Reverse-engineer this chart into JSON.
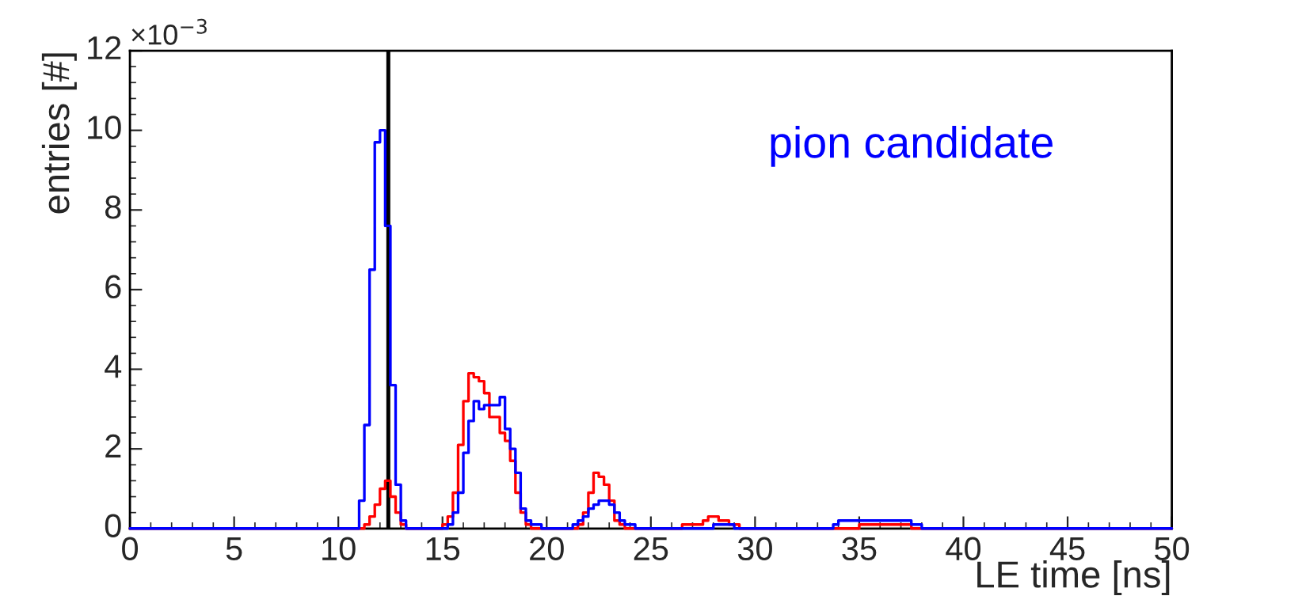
{
  "chart_data": {
    "type": "step",
    "annotations": [
      "pion candidate",
      "×10$^{−3}$"
    ],
    "xlabel": "LE time [ns]",
    "ylabel": "entries [#]",
    "xlim": [
      0,
      50
    ],
    "xticks": [
      0,
      5,
      10,
      15,
      20,
      25,
      30,
      35,
      40,
      45,
      50
    ],
    "ylim": [
      0,
      12
    ],
    "yticks": [
      0,
      2,
      4,
      6,
      8,
      10,
      12
    ],
    "grid": false,
    "legend": false,
    "ref_lines": [
      {
        "axis": "x",
        "value": 12.4,
        "label": null,
        "color": "#000000"
      }
    ],
    "series": [
      {
        "color": "#ff0000",
        "x": [
          0,
          11.0,
          11.25,
          11.5,
          11.75,
          12.0,
          12.25,
          12.5,
          12.75,
          13.0,
          13.25,
          14.75,
          15.0,
          15.25,
          15.5,
          15.75,
          16.0,
          16.25,
          16.5,
          16.75,
          17.0,
          17.25,
          17.5,
          17.75,
          18.0,
          18.25,
          18.5,
          18.75,
          19.0,
          19.25,
          19.5,
          21.25,
          21.5,
          21.75,
          22.0,
          22.25,
          22.5,
          22.75,
          23.0,
          23.25,
          23.5,
          23.75,
          24.5,
          26.5,
          27.0,
          27.5,
          27.75,
          28.25,
          28.75,
          29.25,
          30,
          34,
          35,
          36,
          37,
          37.5,
          38,
          50
        ],
        "values": [
          0,
          0,
          0.1,
          0.3,
          0.6,
          1.0,
          1.2,
          0.8,
          0.4,
          0.1,
          0,
          0,
          0.1,
          0.3,
          0.9,
          2.1,
          3.2,
          3.9,
          3.8,
          3.7,
          3.4,
          2.8,
          2.8,
          2.4,
          2.2,
          1.7,
          0.9,
          0.4,
          0.1,
          0,
          0,
          0,
          0.1,
          0.4,
          0.9,
          1.4,
          1.3,
          1.1,
          0.7,
          0.2,
          0.1,
          0,
          0,
          0.1,
          0.1,
          0.2,
          0.3,
          0.2,
          0.1,
          0,
          0,
          0,
          0.1,
          0.1,
          0.1,
          0,
          0,
          0
        ]
      },
      {
        "color": "#0000ff",
        "x": [
          0,
          10.75,
          11.0,
          11.25,
          11.5,
          11.75,
          12.0,
          12.25,
          12.5,
          12.75,
          13.0,
          13.25,
          13.5,
          14.75,
          15.0,
          15.25,
          15.5,
          15.75,
          16.0,
          16.25,
          16.5,
          16.75,
          17.0,
          17.5,
          17.75,
          18.0,
          18.25,
          18.5,
          18.75,
          19.0,
          19.25,
          19.75,
          20.25,
          21.0,
          21.25,
          21.5,
          21.75,
          22.0,
          22.25,
          22.5,
          23.0,
          23.25,
          23.5,
          23.75,
          24.25,
          25,
          26,
          28,
          29,
          33.75,
          34,
          34.25,
          34.5,
          35.5,
          36.5,
          37,
          37.5,
          38,
          50
        ],
        "values": [
          0,
          0,
          0.7,
          2.6,
          6.5,
          9.7,
          10.0,
          7.6,
          3.6,
          1.1,
          0.2,
          0,
          0,
          0,
          0,
          0.1,
          0.4,
          0.9,
          1.9,
          2.7,
          3.2,
          3.0,
          3.1,
          3.1,
          3.3,
          2.5,
          2.0,
          1.4,
          0.5,
          0.2,
          0.1,
          0,
          0,
          0,
          0.1,
          0.2,
          0.3,
          0.5,
          0.6,
          0.7,
          0.6,
          0.4,
          0.2,
          0.1,
          0,
          0,
          0,
          0.1,
          0,
          0.1,
          0.2,
          0.2,
          0.2,
          0.2,
          0.2,
          0.2,
          0.1,
          0,
          0
        ]
      }
    ]
  }
}
